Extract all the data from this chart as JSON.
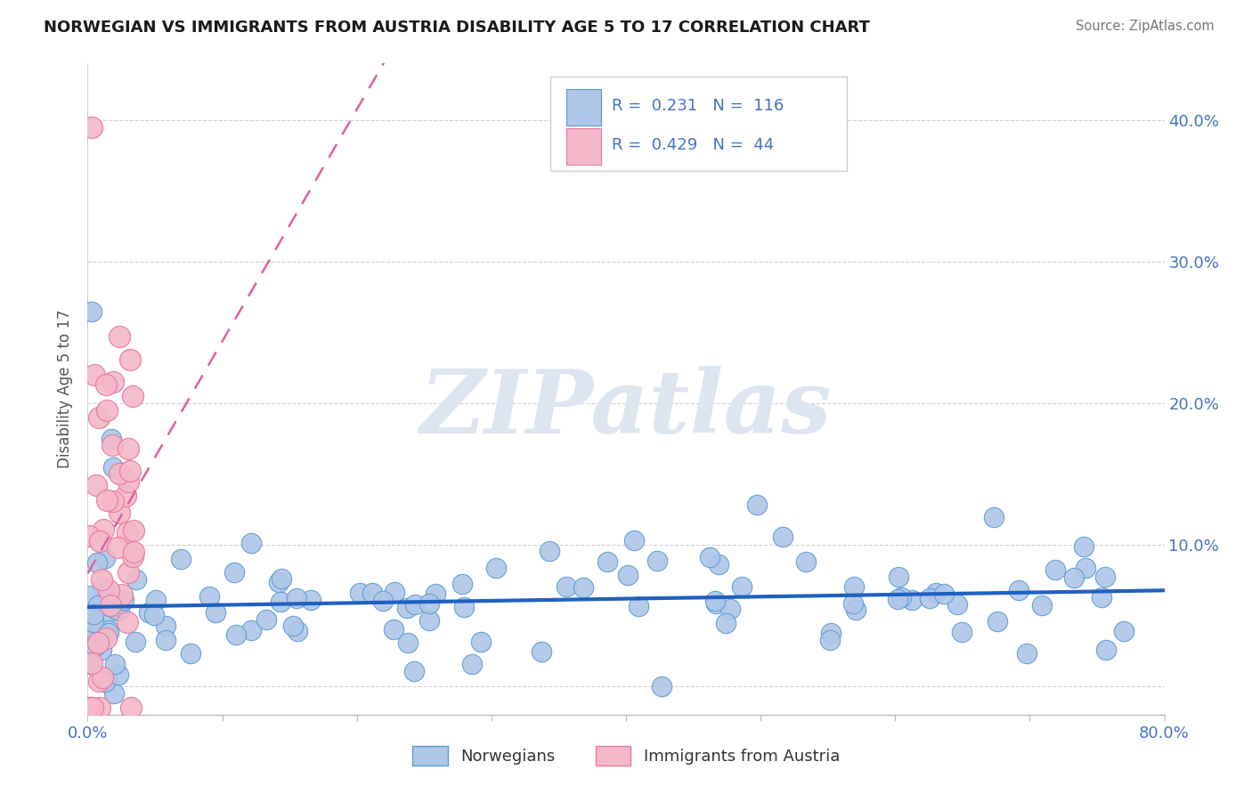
{
  "title": "NORWEGIAN VS IMMIGRANTS FROM AUSTRIA DISABILITY AGE 5 TO 17 CORRELATION CHART",
  "source": "Source: ZipAtlas.com",
  "ylabel": "Disability Age 5 to 17",
  "xlim": [
    0.0,
    0.8
  ],
  "ylim": [
    -0.02,
    0.44
  ],
  "xticks": [
    0.0,
    0.1,
    0.2,
    0.3,
    0.4,
    0.5,
    0.6,
    0.7,
    0.8
  ],
  "xticklabels": [
    "0.0%",
    "",
    "",
    "",
    "",
    "",
    "",
    "",
    "80.0%"
  ],
  "yticks": [
    0.0,
    0.1,
    0.2,
    0.3,
    0.4
  ],
  "yticklabels_right": [
    "",
    "10.0%",
    "20.0%",
    "30.0%",
    "40.0%"
  ],
  "legend1_color": "#aec6e8",
  "legend2_color": "#f4b8c8",
  "blue_scatter_color": "#aec6e8",
  "pink_scatter_color": "#f4b8c8",
  "blue_edge_color": "#5b9bd5",
  "pink_edge_color": "#e87aa0",
  "blue_line_color": "#2060c0",
  "pink_line_color": "#e060a0",
  "text_color_blue": "#4472c4",
  "watermark": "ZIPatlas",
  "watermark_color": "#dde5f0",
  "background_color": "#ffffff",
  "norwegians_label": "Norwegians",
  "austria_label": "Immigrants from Austria",
  "R_norwegian": 0.231,
  "N_norwegian": 116,
  "R_austria": 0.429,
  "N_austria": 44,
  "seed": 42,
  "grid_color": "#d0d0d0",
  "spine_color": "#bbbbbb"
}
